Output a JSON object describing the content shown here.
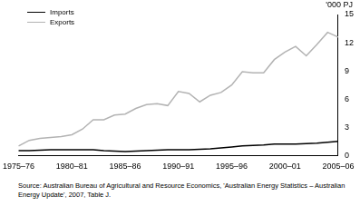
{
  "chart_data": {
    "type": "line",
    "y_label": "'000 PJ",
    "source": "Source: Australian Bureau of Agricultural and Resource Economics, 'Australian Energy Statistics – Australian Energy Update', 2007, Table J.",
    "categories": [
      "1975–76",
      null,
      null,
      null,
      null,
      "1980–81",
      null,
      null,
      null,
      null,
      "1985–86",
      null,
      null,
      null,
      null,
      "1990–91",
      null,
      null,
      null,
      null,
      "1995–96",
      null,
      null,
      null,
      null,
      "2000–01",
      null,
      null,
      null,
      null,
      "2005–06"
    ],
    "series": [
      {
        "name": "Imports",
        "color": "#000000",
        "values": [
          0.5,
          0.5,
          0.55,
          0.6,
          0.6,
          0.6,
          0.6,
          0.6,
          0.5,
          0.45,
          0.4,
          0.45,
          0.5,
          0.55,
          0.6,
          0.6,
          0.6,
          0.65,
          0.7,
          0.8,
          0.9,
          1.0,
          1.05,
          1.1,
          1.2,
          1.2,
          1.2,
          1.25,
          1.3,
          1.4,
          1.5
        ]
      },
      {
        "name": "Exports",
        "color": "#b3b3b3",
        "values": [
          1.0,
          1.6,
          1.8,
          1.9,
          2.0,
          2.2,
          2.8,
          3.8,
          3.8,
          4.3,
          4.4,
          5.0,
          5.4,
          5.5,
          5.3,
          6.8,
          6.6,
          5.7,
          6.4,
          6.7,
          7.5,
          8.9,
          8.8,
          8.8,
          10.2,
          11.0,
          11.6,
          10.6,
          11.8,
          13.1,
          12.6
        ]
      }
    ],
    "ylim": [
      0,
      15
    ],
    "yticks": [
      0,
      3,
      6,
      9,
      12,
      15
    ],
    "grid": false,
    "legend": "upper left"
  }
}
